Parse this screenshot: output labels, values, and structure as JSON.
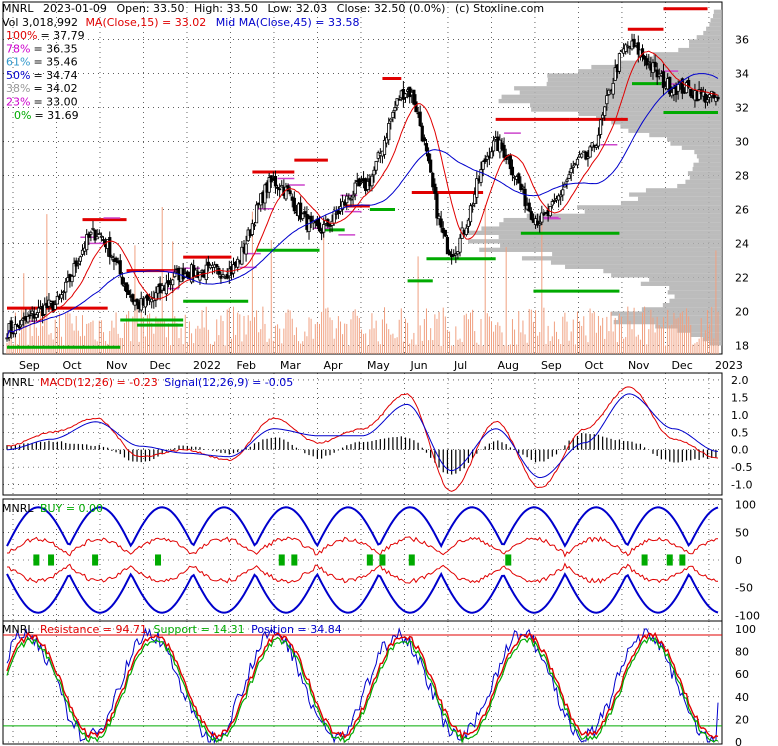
{
  "colors": {
    "red": "#e00000",
    "blue": "#0000cc",
    "green": "#00aa00",
    "black": "#000000",
    "magenta": "#cc00cc",
    "volume": "#f0a080",
    "profile": "#b0b0b0"
  },
  "main": {
    "ticker": "MNRL",
    "date": "2023-01-09",
    "open_label": "Open: 33.50",
    "high_label": "High: 33.50",
    "low_label": "Low: 32.03",
    "close_label": "Close: 32.50 (0.0%)",
    "source": "(c) Stoxline.com",
    "vol_label": "Vol 3,018,992",
    "ma15_label": "MA(Close,15) = 33.02",
    "ma45_label": "Mid MA(Close,45) = 33.58",
    "fib_levels": [
      {
        "pct": "100%",
        "value": "= 37.79",
        "color": "#e00000"
      },
      {
        "pct": "78%",
        "value": "= 36.35",
        "color": "#cc00cc"
      },
      {
        "pct": "61%",
        "value": "= 35.46",
        "color": "#3399cc"
      },
      {
        "pct": "50%",
        "value": "= 34.74",
        "color": "#0000cc"
      },
      {
        "pct": "38%",
        "value": "= 34.02",
        "color": "#999999"
      },
      {
        "pct": "23%",
        "value": "= 33.00",
        "color": "#cc00cc"
      },
      {
        "pct": "0%",
        "value": "= 31.69",
        "color": "#00aa00"
      }
    ],
    "y_ticks": [
      "18",
      "20",
      "22",
      "24",
      "26",
      "28",
      "30",
      "32",
      "34",
      "36"
    ],
    "x_ticks": [
      "Sep",
      "Oct",
      "Nov",
      "Dec",
      "2022",
      "Feb",
      "Mar",
      "Apr",
      "May",
      "Jun",
      "Jul",
      "Aug",
      "Sep",
      "Oct",
      "Nov",
      "Dec",
      "2023"
    ]
  },
  "macd": {
    "ticker": "MNRL",
    "macd_label": "MACD(12,26) = -0.23",
    "signal_label": "Signal(12,26,9) = -0.05",
    "y_ticks": [
      "2.0",
      "1.5",
      "1.0",
      "0.5",
      "0.0",
      "-0.5",
      "-1.0"
    ]
  },
  "buy": {
    "ticker": "MNRL",
    "buy_label": "BUY = 0.00",
    "y_ticks": [
      "100",
      "50",
      "0",
      "-50",
      "-100"
    ]
  },
  "stoch": {
    "ticker": "MNRL",
    "resistance_label": "Resistance = 94.71",
    "support_label": "Support = 14.31",
    "position_label": "Position = 34.84",
    "y_ticks": [
      "100",
      "80",
      "60",
      "40",
      "20",
      "0"
    ]
  },
  "chart_data": [
    {
      "type": "candlestick",
      "title": "MNRL 2023-01-09 Open: 33.50 High: 33.50 Low: 32.03 Close: 32.50 (0.0%)",
      "ylim": [
        17.5,
        38.2
      ],
      "x": [
        "Sep",
        "Oct",
        "Nov",
        "Dec",
        "2022",
        "Feb",
        "Mar",
        "Apr",
        "May",
        "Jun",
        "Jul",
        "Aug",
        "Sep",
        "Oct",
        "Nov",
        "Dec",
        "2023"
      ],
      "close_anchors": [
        18.9,
        20.3,
        24.6,
        20.4,
        22.3,
        22.4,
        27.6,
        24.8,
        27.3,
        33.0,
        23.6,
        29.8,
        25.4,
        29.0,
        35.6,
        33.2,
        32.5
      ],
      "series": [
        {
          "name": "MA(Close,15)",
          "color": "#e00000"
        },
        {
          "name": "Mid MA(Close,45)",
          "color": "#0000cc"
        }
      ],
      "fib_levels": [
        37.79,
        36.35,
        35.46,
        34.74,
        34.02,
        33.0,
        31.69
      ]
    },
    {
      "type": "line",
      "title": "MACD(12,26) = -0.23, Signal(12,26,9) = -0.05",
      "ylim": [
        -1.3,
        2.2
      ],
      "macd_anchors": [
        0.1,
        0.5,
        0.9,
        -0.2,
        0.0,
        -0.3,
        0.9,
        0.2,
        0.6,
        1.6,
        -1.2,
        0.8,
        -1.1,
        0.6,
        1.8,
        0.3,
        -0.23
      ],
      "signal_anchors": [
        0.0,
        0.3,
        0.8,
        0.1,
        -0.1,
        -0.2,
        0.6,
        0.4,
        0.4,
        1.3,
        -0.6,
        0.6,
        -0.8,
        0.2,
        1.6,
        0.6,
        -0.05
      ]
    },
    {
      "type": "line",
      "title": "BUY = 0.00",
      "ylim": [
        -110,
        110
      ]
    },
    {
      "type": "line",
      "title": "Resistance = 94.71, Support = 14.31, Position = 34.84",
      "ylim": [
        0,
        100
      ],
      "resistance": 94.71,
      "support": 14.31,
      "position": 34.84
    }
  ]
}
